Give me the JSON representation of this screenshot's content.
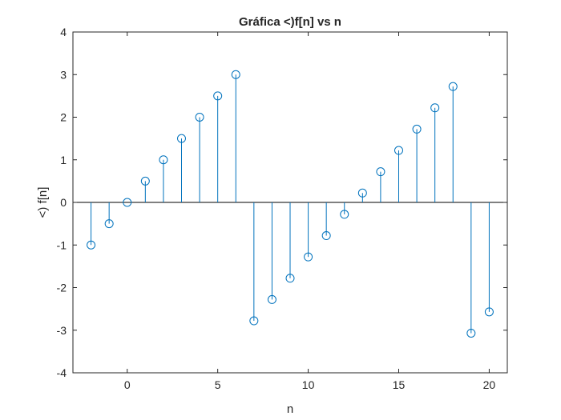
{
  "chart_data": {
    "type": "stem",
    "title": "Gráfica <)f[n] vs n",
    "xlabel": "n",
    "ylabel": "<) f[n]",
    "xlim": [
      -3,
      21
    ],
    "ylim": [
      -4,
      4
    ],
    "xticks": [
      0,
      5,
      10,
      15,
      20
    ],
    "yticks": [
      -4,
      -3,
      -2,
      -1,
      0,
      1,
      2,
      3,
      4
    ],
    "grid": false,
    "series": [
      {
        "color": "#0072BD",
        "marker": "circle-open",
        "x": [
          -2,
          -1,
          0,
          1,
          2,
          3,
          4,
          5,
          6,
          7,
          8,
          9,
          10,
          11,
          12,
          13,
          14,
          15,
          16,
          17,
          18,
          19,
          20
        ],
        "y": [
          -1.0,
          -0.5,
          0.0,
          0.5,
          1.0,
          1.5,
          2.0,
          2.5,
          3.0,
          -2.78,
          -2.28,
          -1.78,
          -1.28,
          -0.78,
          -0.28,
          0.22,
          0.72,
          1.22,
          1.72,
          2.22,
          2.72,
          -3.07,
          -2.57
        ]
      }
    ]
  }
}
